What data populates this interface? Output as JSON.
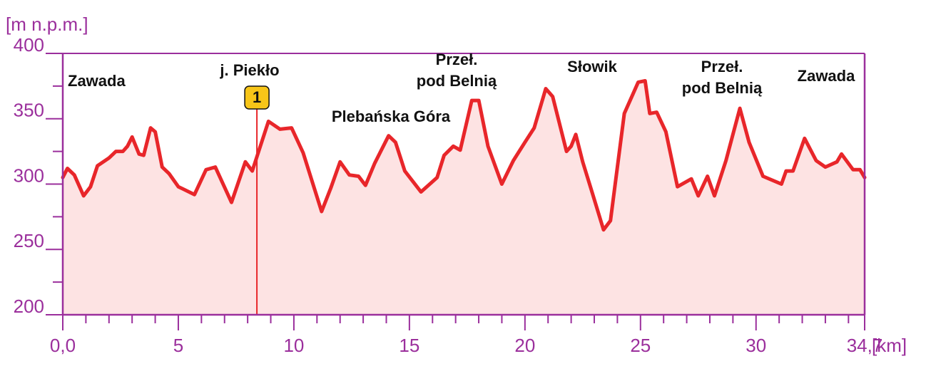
{
  "chart_data": {
    "type": "area",
    "y_label": "[m n.p.m.]",
    "x_label": "[km]",
    "color": "#e8262a",
    "fill_color": "#fde3e3",
    "axis_color": "#9b2f9c",
    "xlim": [
      0,
      34.7
    ],
    "ylim": [
      200,
      400
    ],
    "xticks": [
      {
        "value": 0,
        "label": "0,0"
      },
      5,
      10,
      15,
      20,
      25,
      30,
      {
        "value": 34.7,
        "label": "34,7"
      }
    ],
    "x_minor_ticks": [
      1,
      2,
      3,
      4,
      6,
      7,
      8,
      9,
      11,
      12,
      13,
      14,
      16,
      17,
      18,
      19,
      21,
      22,
      23,
      24,
      26,
      27,
      28,
      29,
      31,
      32,
      33,
      34
    ],
    "yticks": [
      200,
      250,
      300,
      350,
      400
    ],
    "y_minor_ticks": [
      225,
      275,
      325,
      375
    ],
    "x": [
      0,
      0.2,
      0.5,
      0.9,
      1.2,
      1.5,
      2.0,
      2.3,
      2.6,
      2.8,
      3.0,
      3.3,
      3.5,
      3.8,
      4.0,
      4.3,
      4.6,
      5.0,
      5.7,
      6.2,
      6.6,
      7.3,
      7.9,
      8.2,
      8.9,
      9.4,
      9.9,
      10.4,
      11.2,
      11.6,
      12.0,
      12.4,
      12.8,
      13.1,
      13.5,
      14.1,
      14.4,
      14.8,
      15.5,
      16.2,
      16.5,
      16.9,
      17.2,
      17.7,
      18.0,
      18.4,
      19.0,
      19.5,
      20.0,
      20.4,
      20.9,
      21.2,
      21.8,
      22.0,
      22.2,
      22.5,
      22.9,
      23.4,
      23.7,
      24.3,
      24.9,
      25.2,
      25.4,
      25.7,
      26.1,
      26.6,
      27.2,
      27.5,
      27.9,
      28.2,
      28.7,
      29.3,
      29.7,
      30.3,
      31.1,
      31.3,
      31.6,
      32.1,
      32.6,
      33.0,
      33.5,
      33.7,
      34.2,
      34.5,
      34.7
    ],
    "values": [
      305,
      312,
      307,
      291,
      298,
      314,
      320,
      325,
      325,
      329,
      336,
      323,
      322,
      343,
      340,
      313,
      308,
      298,
      292,
      311,
      313,
      286,
      317,
      310,
      348,
      342,
      343,
      324,
      279,
      297,
      317,
      307,
      306,
      299,
      316,
      337,
      332,
      310,
      294,
      305,
      322,
      329,
      326,
      364,
      364,
      329,
      300,
      318,
      332,
      343,
      373,
      367,
      325,
      329,
      338,
      317,
      294,
      265,
      272,
      354,
      378,
      379,
      354,
      355,
      340,
      298,
      304,
      291,
      306,
      291,
      318,
      358,
      332,
      306,
      300,
      310,
      310,
      335,
      318,
      313,
      317,
      323,
      311,
      311,
      305
    ],
    "annotations": [
      [
        "Zawada"
      ],
      [
        "j. Piekło"
      ],
      [
        "Plebańska Góra"
      ],
      [
        "Przeł.",
        "pod Belnią"
      ],
      [
        "Słowik"
      ],
      [
        "Przeł.",
        "pod Belnią"
      ],
      [
        "Zawada"
      ]
    ],
    "marker": {
      "label": "1",
      "x": 8.4
    }
  }
}
